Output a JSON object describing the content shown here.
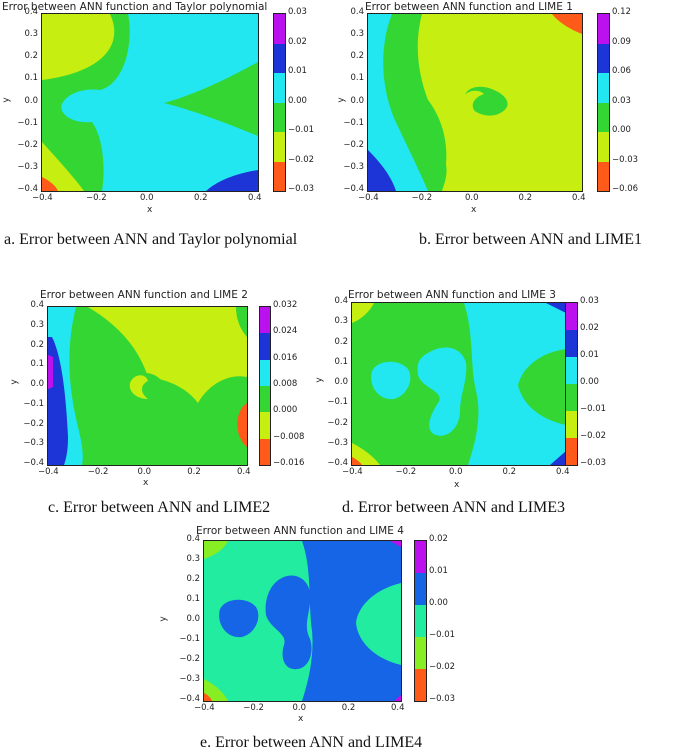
{
  "panels": [
    {
      "title": "Error between ANN function and Taylor polynomial",
      "caption": "a.  Error between ANN and Taylor polynomial",
      "xticks": [
        "−0.4",
        "−0.2",
        "0.0",
        "0.2",
        "0.4"
      ],
      "yticks": [
        "0.4",
        "0.3",
        "0.2",
        "0.1",
        "0.0",
        "−0.1",
        "−0.2",
        "−0.3",
        "−0.4"
      ],
      "xlabel": "x",
      "ylabel": "y",
      "cbar_ticks": [
        "0.03",
        "0.02",
        "0.01",
        "0.00",
        "−0.01",
        "−0.02",
        "−0.03"
      ],
      "cbar_colors": [
        "#bb11ee",
        "#1d35d6",
        "#22e6f0",
        "#33d633",
        "#c6ee11",
        "#ff5a1a"
      ]
    },
    {
      "title": "Error between ANN function and LIME 1",
      "caption": "b. Error between ANN and LIME1",
      "xticks": [
        "−0.4",
        "−0.2",
        "0.0",
        "0.2",
        "0.4"
      ],
      "yticks": [
        "0.4",
        "0.3",
        "0.2",
        "0.1",
        "0.0",
        "−0.1",
        "−0.2",
        "−0.3",
        "−0.4"
      ],
      "xlabel": "x",
      "ylabel": "y",
      "cbar_ticks": [
        "0.12",
        "0.09",
        "0.06",
        "0.03",
        "0.00",
        "−0.03",
        "−0.06"
      ],
      "cbar_colors": [
        "#bb11ee",
        "#1d35d6",
        "#22e6f0",
        "#33d633",
        "#c6ee11",
        "#ff5a1a"
      ]
    },
    {
      "title": "Error between ANN function and LIME 2",
      "caption": "c.     Error between ANN and LIME2",
      "xticks": [
        "−0.4",
        "−0.2",
        "0.0",
        "0.2",
        "0.4"
      ],
      "yticks": [
        "0.4",
        "0.3",
        "0.2",
        "0.1",
        "0.0",
        "−0.1",
        "−0.2",
        "−0.3",
        "−0.4"
      ],
      "xlabel": "x",
      "ylabel": "y",
      "cbar_ticks": [
        "0.032",
        "0.024",
        "0.016",
        "0.008",
        "0.000",
        "−0.008",
        "−0.016"
      ],
      "cbar_colors": [
        "#bb11ee",
        "#1d35d6",
        "#22e6f0",
        "#33d633",
        "#c6ee11",
        "#ff5a1a"
      ]
    },
    {
      "title": "Error between ANN function and LIME 3",
      "caption": "d. Error between ANN and LIME3",
      "xticks": [
        "−0.4",
        "−0.2",
        "0.0",
        "0.2",
        "0.4"
      ],
      "yticks": [
        "0.4",
        "0.3",
        "0.2",
        "0.1",
        "0.0",
        "−0.1",
        "−0.2",
        "−0.3",
        "−0.4"
      ],
      "xlabel": "x",
      "ylabel": "y",
      "cbar_ticks": [
        "0.03",
        "0.02",
        "0.01",
        "0.00",
        "−0.01",
        "−0.02",
        "−0.03"
      ],
      "cbar_colors": [
        "#bb11ee",
        "#1d35d6",
        "#22e6f0",
        "#33d633",
        "#c6ee11",
        "#ff5a1a"
      ]
    },
    {
      "title": "Error between ANN function and LIME 4",
      "caption": "e.     Error between ANN and LIME4",
      "xticks": [
        "−0.4",
        "−0.2",
        "0.0",
        "0.2",
        "0.4"
      ],
      "yticks": [
        "0.4",
        "0.3",
        "0.2",
        "0.1",
        "0.0",
        "−0.1",
        "−0.2",
        "−0.3",
        "−0.4"
      ],
      "xlabel": "x",
      "ylabel": "y",
      "cbar_ticks": [
        "0.02",
        "0.01",
        "0.00",
        "−0.01",
        "−0.02",
        "−0.03"
      ],
      "cbar_colors": [
        "#bb11ee",
        "#1565e6",
        "#22eca0",
        "#86ee22",
        "#ff5a1a"
      ]
    }
  ],
  "chart_data": [
    {
      "type": "heatmap",
      "title": "Error between ANN function and Taylor polynomial",
      "xlabel": "x",
      "ylabel": "y",
      "xlim": [
        -0.4,
        0.4
      ],
      "ylim": [
        -0.4,
        0.4
      ],
      "color_levels": [
        -0.03,
        -0.02,
        -0.01,
        0.0,
        0.01,
        0.02,
        0.03
      ],
      "colormap_colors": [
        "#ff5a1a",
        "#c6ee11",
        "#33d633",
        "#22e6f0",
        "#1d35d6",
        "#bb11ee"
      ]
    },
    {
      "type": "heatmap",
      "title": "Error between ANN function and LIME 1",
      "xlabel": "x",
      "ylabel": "y",
      "xlim": [
        -0.4,
        0.4
      ],
      "ylim": [
        -0.4,
        0.4
      ],
      "color_levels": [
        -0.06,
        -0.03,
        0.0,
        0.03,
        0.06,
        0.09,
        0.12
      ],
      "colormap_colors": [
        "#ff5a1a",
        "#c6ee11",
        "#33d633",
        "#22e6f0",
        "#1d35d6",
        "#bb11ee"
      ]
    },
    {
      "type": "heatmap",
      "title": "Error between ANN function and LIME 2",
      "xlabel": "x",
      "ylabel": "y",
      "xlim": [
        -0.4,
        0.4
      ],
      "ylim": [
        -0.4,
        0.4
      ],
      "color_levels": [
        -0.016,
        -0.008,
        0.0,
        0.008,
        0.016,
        0.024,
        0.032
      ],
      "colormap_colors": [
        "#ff5a1a",
        "#c6ee11",
        "#33d633",
        "#22e6f0",
        "#1d35d6",
        "#bb11ee"
      ]
    },
    {
      "type": "heatmap",
      "title": "Error between ANN function and LIME 3",
      "xlabel": "x",
      "ylabel": "y",
      "xlim": [
        -0.4,
        0.4
      ],
      "ylim": [
        -0.4,
        0.4
      ],
      "color_levels": [
        -0.03,
        -0.02,
        -0.01,
        0.0,
        0.01,
        0.02,
        0.03
      ],
      "colormap_colors": [
        "#ff5a1a",
        "#c6ee11",
        "#33d633",
        "#22e6f0",
        "#1d35d6",
        "#bb11ee"
      ]
    },
    {
      "type": "heatmap",
      "title": "Error between ANN function and LIME 4",
      "xlabel": "x",
      "ylabel": "y",
      "xlim": [
        -0.4,
        0.4
      ],
      "ylim": [
        -0.4,
        0.4
      ],
      "color_levels": [
        -0.03,
        -0.02,
        -0.01,
        0.0,
        0.01,
        0.02
      ],
      "colormap_colors": [
        "#ff5a1a",
        "#86ee22",
        "#22eca0",
        "#1565e6",
        "#bb11ee"
      ]
    }
  ]
}
